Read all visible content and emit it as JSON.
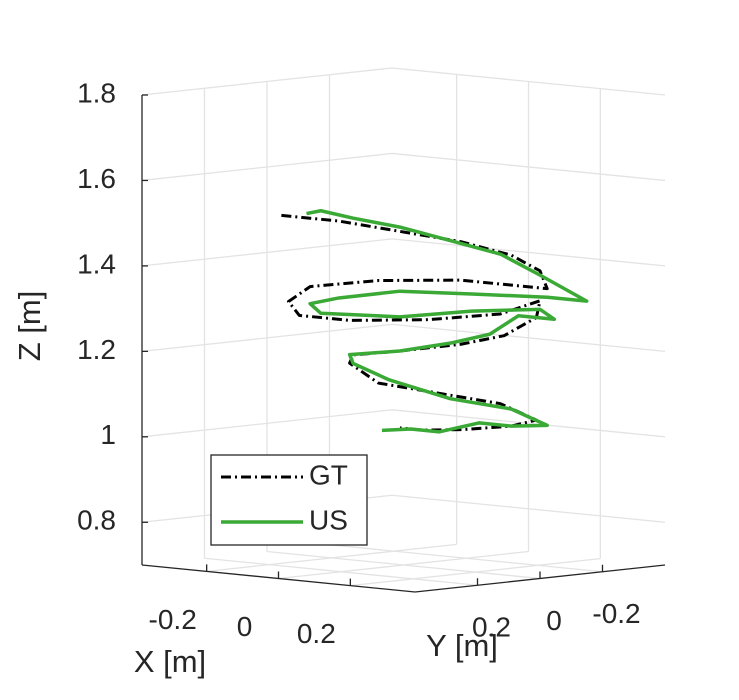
{
  "chart_data": {
    "type": "line3d",
    "xlabel": "X [m]",
    "ylabel": "Y [m]",
    "zlabel": "Z [m]",
    "xlim": [
      -0.38,
      0.38
    ],
    "ylim": [
      -0.4,
      0.4
    ],
    "zlim": [
      0.7,
      1.8
    ],
    "xticks": [
      -0.2,
      0,
      0.2
    ],
    "yticks": [
      -0.2,
      0,
      0.2
    ],
    "zticks": [
      0.8,
      1,
      1.2,
      1.4,
      1.6,
      1.8
    ],
    "grid": true,
    "legend": "southwest",
    "series": [
      {
        "name": "GT",
        "color": "#000000",
        "linestyle": "-.",
        "x": [
          -0.34,
          -0.18,
          -0.01,
          0.16,
          0.3,
          0.38,
          0.4,
          0.32,
          0.16,
          -0.07,
          -0.26,
          -0.32,
          -0.29,
          -0.15,
          0.07,
          0.27,
          0.38,
          0.37,
          0.28,
          0.16,
          -0.01,
          -0.14,
          -0.15,
          -0.07,
          0.1,
          0.27,
          0.37,
          0.3,
          0.16,
          0.05,
          -0.01
        ],
        "y": [
          0,
          0,
          0,
          0,
          0,
          0,
          0,
          0,
          0,
          0,
          0,
          0,
          0,
          0,
          0,
          0,
          0,
          0,
          0,
          0,
          0,
          0,
          0,
          0,
          0,
          0,
          0,
          0,
          0,
          0,
          0
        ],
        "z": [
          1.49,
          1.49,
          1.48,
          1.47,
          1.45,
          1.42,
          1.38,
          1.38,
          1.38,
          1.36,
          1.33,
          1.29,
          1.26,
          1.26,
          1.28,
          1.31,
          1.35,
          1.31,
          1.26,
          1.23,
          1.2,
          1.18,
          1.16,
          1.12,
          1.11,
          1.1,
          1.07,
          1.05,
          1.03,
          1.02,
          1.02
        ]
      },
      {
        "name": "US",
        "color": "#3aa935",
        "linestyle": "-",
        "x": [
          -0.27,
          -0.23,
          -0.14,
          -0.01,
          0.13,
          0.27,
          0.38,
          0.51,
          0.4,
          0.19,
          -0.01,
          -0.18,
          -0.26,
          -0.23,
          -0.01,
          0.19,
          0.38,
          0.42,
          0.32,
          0.24,
          0.13,
          -0.01,
          -0.15,
          -0.14,
          -0.04,
          0.13,
          0.3,
          0.4,
          0.3,
          0.21,
          0.1,
          0.02,
          -0.06
        ],
        "y": [
          0,
          0,
          0,
          0,
          0,
          0,
          0,
          0,
          0,
          0,
          0,
          0,
          0,
          0,
          0,
          0,
          0,
          0,
          0,
          0,
          0,
          0,
          0,
          0,
          0,
          0,
          0,
          0,
          0,
          0,
          0,
          0,
          0
        ],
        "z": [
          1.5,
          1.51,
          1.5,
          1.49,
          1.47,
          1.45,
          1.41,
          1.36,
          1.36,
          1.35,
          1.34,
          1.31,
          1.29,
          1.27,
          1.28,
          1.31,
          1.33,
          1.31,
          1.31,
          1.26,
          1.23,
          1.2,
          1.18,
          1.16,
          1.13,
          1.1,
          1.09,
          1.06,
          1.05,
          1.05,
          1.02,
          1.02,
          1.01
        ]
      }
    ]
  }
}
